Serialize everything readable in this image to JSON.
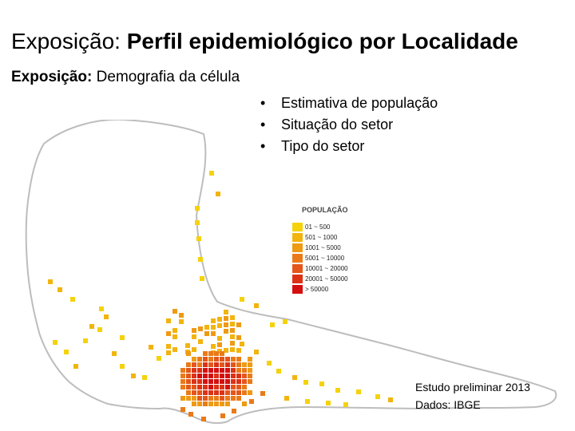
{
  "title": {
    "prefix": "Exposição: ",
    "main": "Perfil epidemiológico por Localidade"
  },
  "subtitle": {
    "prefix": "Exposição:",
    "text": " Demografia da célula"
  },
  "bullets": [
    "Estimativa de população",
    "Situação do setor",
    "Tipo do setor"
  ],
  "legend": {
    "title": "POPULAÇÃO",
    "items": [
      {
        "label": "01 ~ 500",
        "color": "#f5d20a"
      },
      {
        "label": "501 ~ 1000",
        "color": "#f2b40e"
      },
      {
        "label": "1001 ~ 5000",
        "color": "#ef9a14"
      },
      {
        "label": "5001 ~ 10000",
        "color": "#ea7a18"
      },
      {
        "label": "10001 ~ 20000",
        "color": "#e4561a"
      },
      {
        "label": "20001 ~ 50000",
        "color": "#dc3216"
      },
      {
        "label": "> 50000",
        "color": "#d40f0f"
      }
    ]
  },
  "source": {
    "line1_label": "Estudo preliminar",
    "line1_year": "2013",
    "line2": "Dados: IBGE"
  }
}
